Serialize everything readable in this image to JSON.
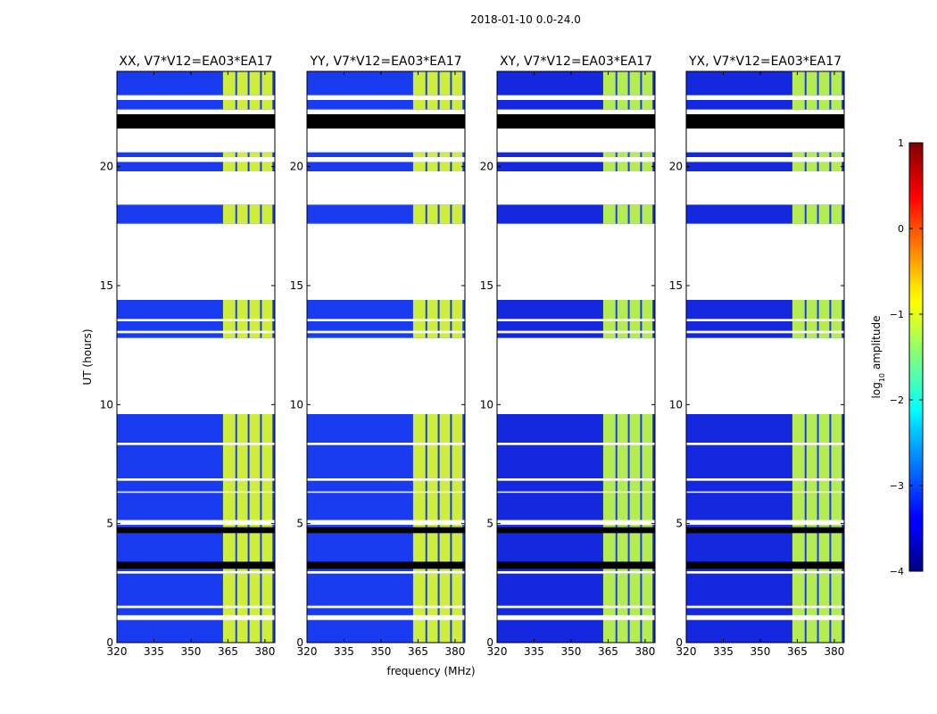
{
  "chart_data": {
    "type": "heatmap",
    "suptitle": "2018-01-10 0.0-24.0",
    "xlabel": "frequency (MHz)",
    "ylabel": "UT (hours)",
    "xlim": [
      320,
      384
    ],
    "ylim": [
      0,
      24
    ],
    "xticks": [
      320,
      335,
      350,
      365,
      380
    ],
    "yticks": [
      0,
      5,
      10,
      15,
      20
    ],
    "colorbar": {
      "label": "log10 amplitude",
      "label_prefix": "log",
      "label_sub": "10",
      "label_suffix": " amplitude",
      "range": [
        -4,
        1
      ],
      "ticks": [
        1,
        0,
        -1,
        -2,
        -3,
        -4
      ],
      "tick_labels": [
        "1",
        "0",
        "−1",
        "−2",
        "−3",
        "−4"
      ],
      "colormap": "jet"
    },
    "panels": [
      {
        "title": "XX, V7*V12=EA03*EA17",
        "bg_color": "#1a3cf0",
        "rfi_color": "#cfee3c"
      },
      {
        "title": "YY, V7*V12=EA03*EA17",
        "bg_color": "#1a3cf0",
        "rfi_color": "#cfee3c"
      },
      {
        "title": "XY, V7*V12=EA03*EA17",
        "bg_color": "#1428e0",
        "rfi_color": "#b4ec52"
      },
      {
        "title": "YX, V7*V12=EA03*EA17",
        "bg_color": "#1428e0",
        "rfi_color": "#b4ec52"
      }
    ],
    "data_blocks_hours": [
      [
        0,
        2.9
      ],
      [
        3.0,
        4.9
      ],
      [
        4.9,
        9.6
      ],
      [
        12.8,
        14.4
      ],
      [
        17.6,
        18.4
      ],
      [
        19.8,
        20.2
      ],
      [
        20.4,
        20.6
      ],
      [
        21.6,
        22.2
      ],
      [
        22.4,
        22.8
      ],
      [
        23.0,
        24.0
      ]
    ],
    "flagged_black_hours": [
      [
        3.1,
        3.4
      ],
      [
        4.6,
        4.85
      ],
      [
        21.6,
        22.2
      ]
    ],
    "white_gap_hours": [
      [
        0.95,
        1.15
      ],
      [
        1.45,
        1.55
      ],
      [
        4.95,
        5.15
      ],
      [
        8.3,
        8.4
      ],
      [
        6.8,
        6.9
      ],
      [
        6.3,
        6.35
      ],
      [
        13.5,
        13.6
      ],
      [
        13.0,
        13.1
      ],
      [
        20.2,
        20.4
      ]
    ],
    "rfi_band_mhz": [
      363,
      383
    ],
    "rfi_channel_lines_mhz": [
      368,
      373,
      378
    ]
  }
}
